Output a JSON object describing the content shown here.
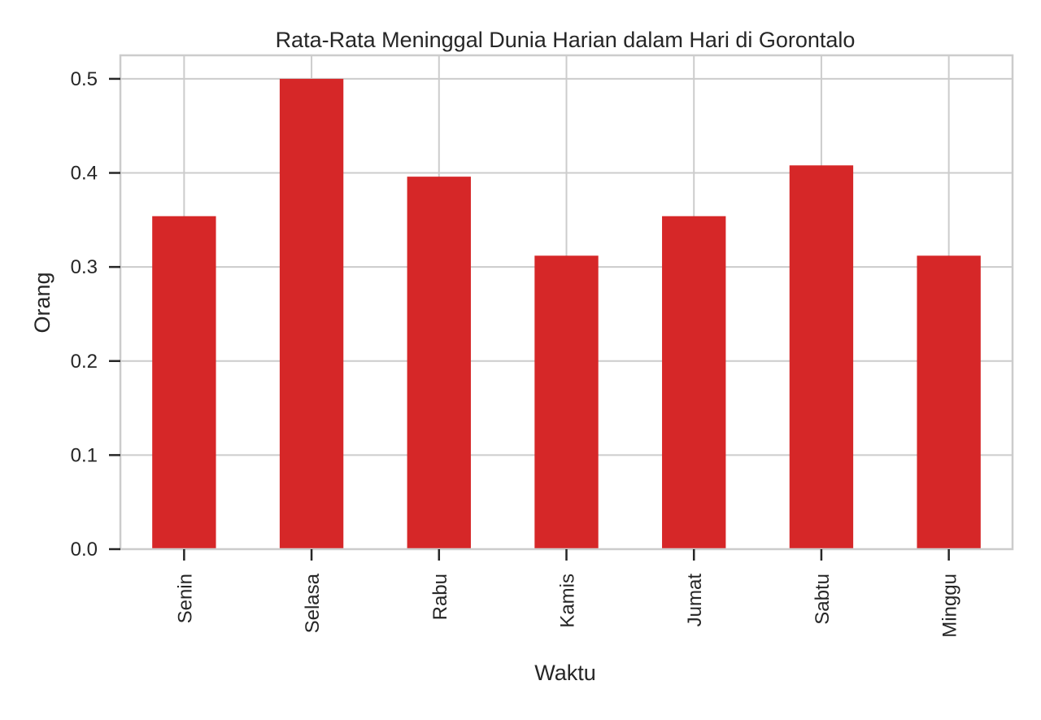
{
  "chart_data": {
    "type": "bar",
    "title": "Rata-Rata Meninggal Dunia Harian dalam Hari di Gorontalo",
    "xlabel": "Waktu",
    "ylabel": "Orang",
    "categories": [
      "Senin",
      "Selasa",
      "Rabu",
      "Kamis",
      "Jumat",
      "Sabtu",
      "Minggu"
    ],
    "values": [
      0.354,
      0.5,
      0.396,
      0.312,
      0.354,
      0.408,
      0.312
    ],
    "ylim": [
      0,
      0.525
    ],
    "yticks": [
      0.0,
      0.1,
      0.2,
      0.3,
      0.4,
      0.5
    ],
    "ytick_labels": [
      "0.0",
      "0.1",
      "0.2",
      "0.3",
      "0.4",
      "0.5"
    ],
    "grid": true,
    "bar_color": "#d62728",
    "grid_color": "#cccccc",
    "legend": "none"
  }
}
